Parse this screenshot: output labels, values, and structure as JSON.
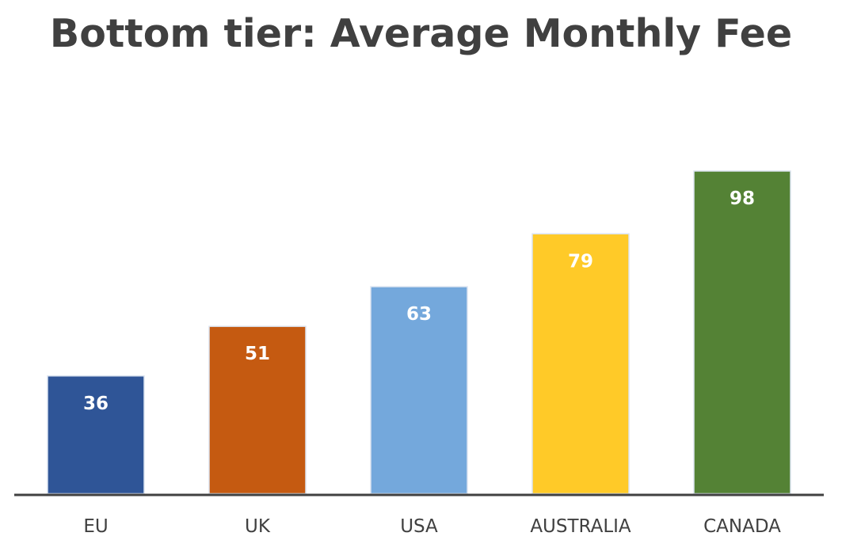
{
  "chart_data": {
    "type": "bar",
    "title": "Bottom tier: Average Monthly Fee",
    "xlabel": "",
    "ylabel": "",
    "categories": [
      "EU",
      "UK",
      "USA",
      "AUSTRALIA",
      "CANADA"
    ],
    "values": [
      36,
      51,
      63,
      79,
      98
    ],
    "colors": [
      "#2F5597",
      "#C55A11",
      "#74A8DC",
      "#FFCA28",
      "#548235"
    ],
    "ylim": [
      0,
      110
    ],
    "grid": false,
    "legend": "none",
    "data_labels": true
  }
}
